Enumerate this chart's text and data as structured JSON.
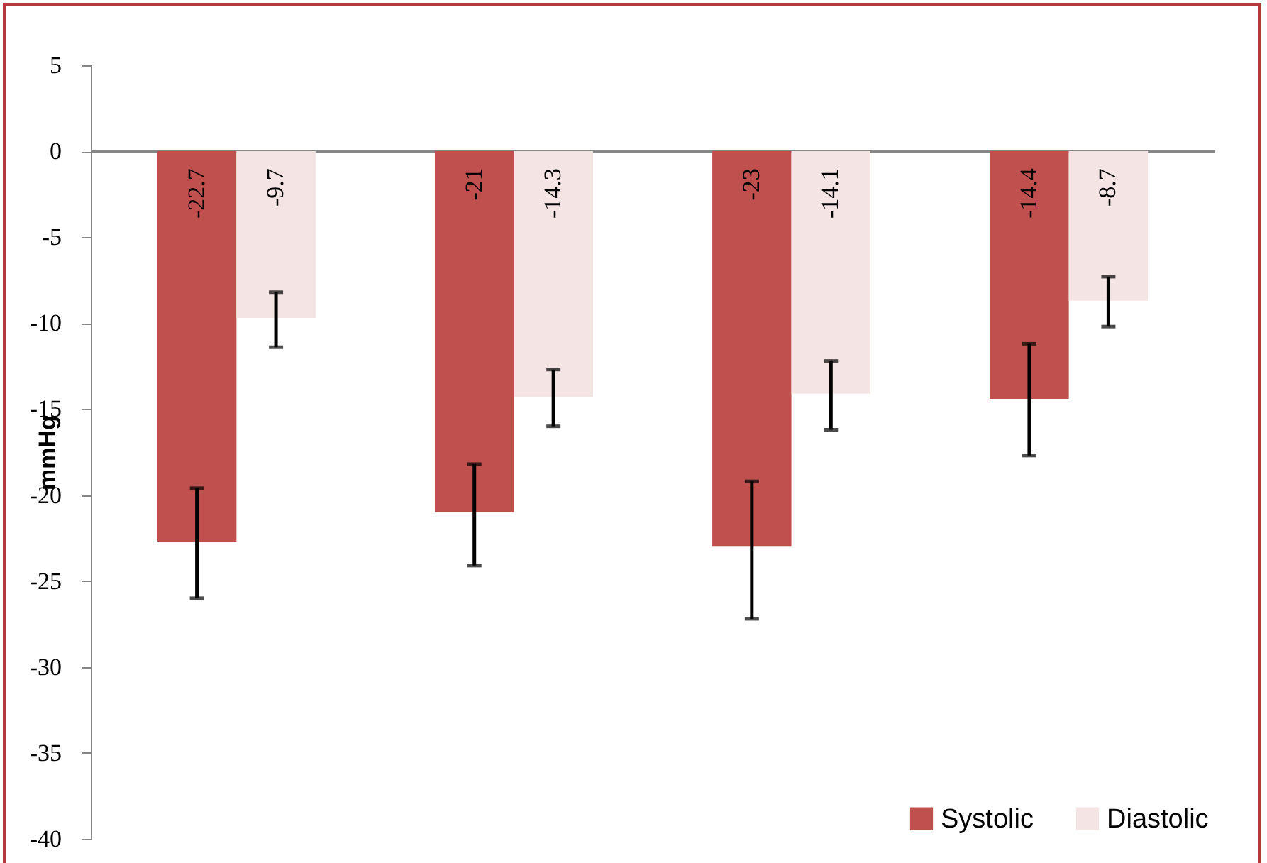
{
  "chart_data": {
    "type": "bar",
    "ylabel": "mmHg",
    "categories": [
      null,
      null,
      null,
      null
    ],
    "series": [
      {
        "name": "Systolic",
        "color": "#c0504d",
        "values": [
          -22.7,
          -21,
          -23,
          -14.4
        ],
        "errors": [
          [
            -26.0,
            -19.6
          ],
          [
            -24.1,
            -18.2
          ],
          [
            -27.2,
            -19.2
          ],
          [
            -17.7,
            -11.2
          ]
        ]
      },
      {
        "name": "Diastolic",
        "color": "#f5e4e4",
        "values": [
          -9.7,
          -14.3,
          -14.1,
          -8.7
        ],
        "errors": [
          [
            -11.4,
            -8.2
          ],
          [
            -16.0,
            -12.7
          ],
          [
            -16.2,
            -12.2
          ],
          [
            -10.2,
            -7.3
          ]
        ]
      }
    ],
    "ylim": [
      -40,
      5
    ],
    "yticks": [
      -40,
      -35,
      -30,
      -25,
      -20,
      -15,
      -10,
      -5,
      0,
      5
    ],
    "data_labels": true,
    "legend": "bottom right"
  }
}
